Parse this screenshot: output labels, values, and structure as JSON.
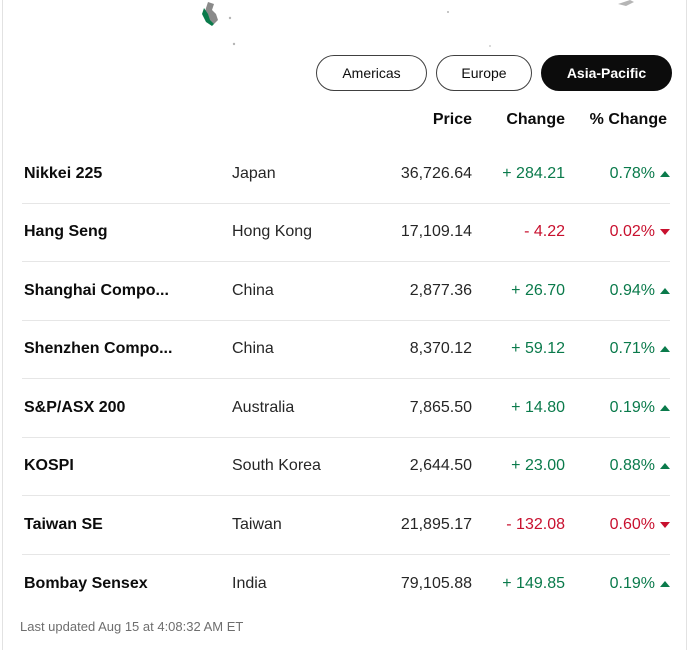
{
  "region_tabs": [
    {
      "label": "Americas",
      "selected": false
    },
    {
      "label": "Europe",
      "selected": false
    },
    {
      "label": "Asia-Pacific",
      "selected": true
    }
  ],
  "columns": {
    "price": "Price",
    "change": "Change",
    "pct_change": "% Change"
  },
  "rows": [
    {
      "name": "Nikkei 225",
      "country": "Japan",
      "price": "36,726.64",
      "change": "+ 284.21",
      "pct": "0.78%",
      "direction": "up"
    },
    {
      "name": "Hang Seng",
      "country": "Hong Kong",
      "price": "17,109.14",
      "change": "- 4.22",
      "pct": "0.02%",
      "direction": "down"
    },
    {
      "name": "Shanghai Compo...",
      "country": "China",
      "price": "2,877.36",
      "change": "+ 26.70",
      "pct": "0.94%",
      "direction": "up"
    },
    {
      "name": "Shenzhen Compo...",
      "country": "China",
      "price": "8,370.12",
      "change": "+ 59.12",
      "pct": "0.71%",
      "direction": "up"
    },
    {
      "name": "S&P/ASX 200",
      "country": "Australia",
      "price": "7,865.50",
      "change": "+ 14.80",
      "pct": "0.19%",
      "direction": "up"
    },
    {
      "name": "KOSPI",
      "country": "South Korea",
      "price": "2,644.50",
      "change": "+ 23.00",
      "pct": "0.88%",
      "direction": "up"
    },
    {
      "name": "Taiwan SE",
      "country": "Taiwan",
      "price": "21,895.17",
      "change": "- 132.08",
      "pct": "0.60%",
      "direction": "down"
    },
    {
      "name": "Bombay Sensex",
      "country": "India",
      "price": "79,105.88",
      "change": "+ 149.85",
      "pct": "0.19%",
      "direction": "up"
    }
  ],
  "last_updated": "Last updated Aug 15 at 4:08:32 AM ET",
  "colors": {
    "positive": "#0a7a4b",
    "negative": "#c8102e",
    "selected_tab": "#0c0c0c"
  },
  "icons": {
    "up": "triangle-up-icon",
    "down": "triangle-down-icon"
  }
}
